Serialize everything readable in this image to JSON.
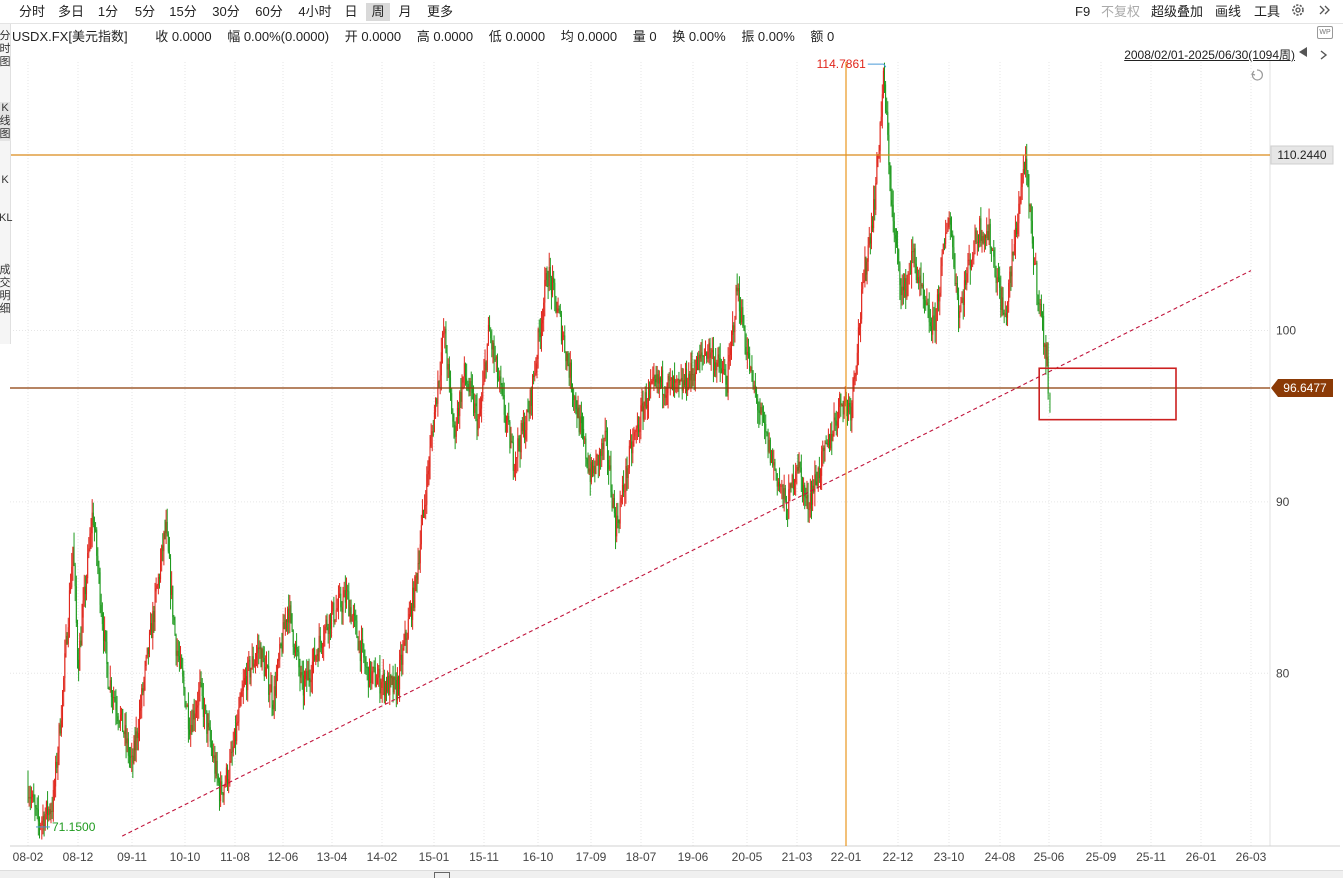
{
  "toolbar": {
    "periods": [
      "分时",
      "多日",
      "1分",
      "5分",
      "15分",
      "30分",
      "60分",
      "4小时",
      "日",
      "周",
      "月",
      "更多"
    ],
    "active_period": "周",
    "right": {
      "f9": "F9",
      "no_adjust": "不复权",
      "overlay": "超级叠加",
      "draw": "画线",
      "tools": "工具"
    }
  },
  "left_nav": [
    "分时图",
    "K线图",
    "K",
    "KL",
    "成交明细"
  ],
  "info": {
    "symbol": "USDX.FX[美元指数]",
    "close": "收 0.0000",
    "amplitude_change": "幅 0.00%(0.0000)",
    "open": "开 0.0000",
    "high": "高 0.0000",
    "low": "低 0.0000",
    "avg": "均 0.0000",
    "volume": "量 0",
    "turnover": "换 0.00%",
    "swing": "振 0.00%",
    "amount": "额 0"
  },
  "range_label": "2008/02/01-2025/06/30(1094周)",
  "corner_badge": "WP",
  "colors": {
    "up": "#e0261c",
    "down": "#1e9a1e",
    "hline_top": "#d98a1a",
    "hline_mid": "#8b3a06",
    "vline": "#e8961e",
    "trendline": "#c0143c",
    "box": "#cc2020",
    "price_tag_mid": "#8b3a06",
    "high_label": "#e0261c",
    "low_label": "#1e9a1e"
  },
  "chart_data": {
    "type": "candlestick",
    "interval": "weekly",
    "x_ticks": [
      "08-02",
      "08-12",
      "09-11",
      "10-10",
      "11-08",
      "12-06",
      "13-04",
      "14-02",
      "15-01",
      "15-11",
      "16-10",
      "17-09",
      "18-07",
      "19-06",
      "20-05",
      "21-03",
      "22-01",
      "22-12",
      "23-10",
      "24-08",
      "25-06",
      "25-09",
      "25-11",
      "26-01",
      "26-03"
    ],
    "y_ticks": [
      80,
      90,
      100
    ],
    "ylim": [
      69.5,
      116.5
    ],
    "series_path": [
      [
        "2008-02",
        73.5
      ],
      [
        "2008-04",
        71.2
      ],
      [
        "2008-07",
        72.4
      ],
      [
        "2008-09",
        79.0
      ],
      [
        "2008-11",
        87.5
      ],
      [
        "2008-12",
        80.5
      ],
      [
        "2009-03",
        89.5
      ],
      [
        "2009-06",
        80.0
      ],
      [
        "2009-09",
        77.0
      ],
      [
        "2009-11",
        74.5
      ],
      [
        "2010-02",
        80.5
      ],
      [
        "2010-06",
        88.5
      ],
      [
        "2010-08",
        82.0
      ],
      [
        "2010-11",
        77.0
      ],
      [
        "2011-01",
        79.0
      ],
      [
        "2011-05",
        73.0
      ],
      [
        "2011-07",
        74.5
      ],
      [
        "2011-10",
        79.5
      ],
      [
        "2012-01",
        81.5
      ],
      [
        "2012-04",
        78.5
      ],
      [
        "2012-07",
        84.0
      ],
      [
        "2012-10",
        79.0
      ],
      [
        "2013-03",
        83.0
      ],
      [
        "2013-07",
        84.5
      ],
      [
        "2013-11",
        80.0
      ],
      [
        "2014-05",
        79.0
      ],
      [
        "2014-09",
        85.0
      ],
      [
        "2015-01",
        95.0
      ],
      [
        "2015-03",
        100.0
      ],
      [
        "2015-05",
        94.0
      ],
      [
        "2015-07",
        97.5
      ],
      [
        "2015-10",
        94.5
      ],
      [
        "2015-12",
        100.0
      ],
      [
        "2016-05",
        92.5
      ],
      [
        "2016-08",
        95.0
      ],
      [
        "2016-12",
        103.5
      ],
      [
        "2017-03",
        100.0
      ],
      [
        "2017-07",
        94.0
      ],
      [
        "2017-09",
        91.5
      ],
      [
        "2017-12",
        93.5
      ],
      [
        "2018-02",
        88.5
      ],
      [
        "2018-05",
        93.0
      ],
      [
        "2018-08",
        96.0
      ],
      [
        "2018-11",
        97.0
      ],
      [
        "2019-03",
        96.5
      ],
      [
        "2019-07",
        98.0
      ],
      [
        "2019-09",
        99.0
      ],
      [
        "2020-01",
        97.0
      ],
      [
        "2020-03",
        102.5
      ],
      [
        "2020-06",
        97.0
      ],
      [
        "2020-09",
        93.5
      ],
      [
        "2021-01",
        89.5
      ],
      [
        "2021-03",
        92.5
      ],
      [
        "2021-05",
        89.8
      ],
      [
        "2021-09",
        93.0
      ],
      [
        "2021-12",
        96.0
      ],
      [
        "2022-02",
        95.5
      ],
      [
        "2022-05",
        103.5
      ],
      [
        "2022-07",
        107.5
      ],
      [
        "2022-09",
        114.8
      ],
      [
        "2022-11",
        106.0
      ],
      [
        "2023-01",
        102.0
      ],
      [
        "2023-03",
        104.5
      ],
      [
        "2023-05",
        101.5
      ],
      [
        "2023-07",
        100.0
      ],
      [
        "2023-10",
        107.0
      ],
      [
        "2023-12",
        101.0
      ],
      [
        "2024-02",
        104.0
      ],
      [
        "2024-04",
        106.0
      ],
      [
        "2024-06",
        105.5
      ],
      [
        "2024-09",
        100.5
      ],
      [
        "2025-01",
        110.0
      ],
      [
        "2025-03",
        104.0
      ],
      [
        "2025-05",
        99.5
      ],
      [
        "2025-06",
        96.6
      ]
    ],
    "annotations": {
      "high_label": "114.7861",
      "low_label": "71.1500",
      "price_tag_top": "110.2440",
      "price_tag_mid": "96.6477"
    },
    "hlines": [
      110.244,
      96.6477
    ],
    "trendline": [
      [
        "2009-09",
        70.5
      ],
      [
        "2026-03",
        103.5
      ]
    ],
    "box": {
      "x0": "2025-04",
      "x1": "2025-12",
      "y0": 94.8,
      "y1": 97.8
    },
    "vline": "2022-01"
  }
}
